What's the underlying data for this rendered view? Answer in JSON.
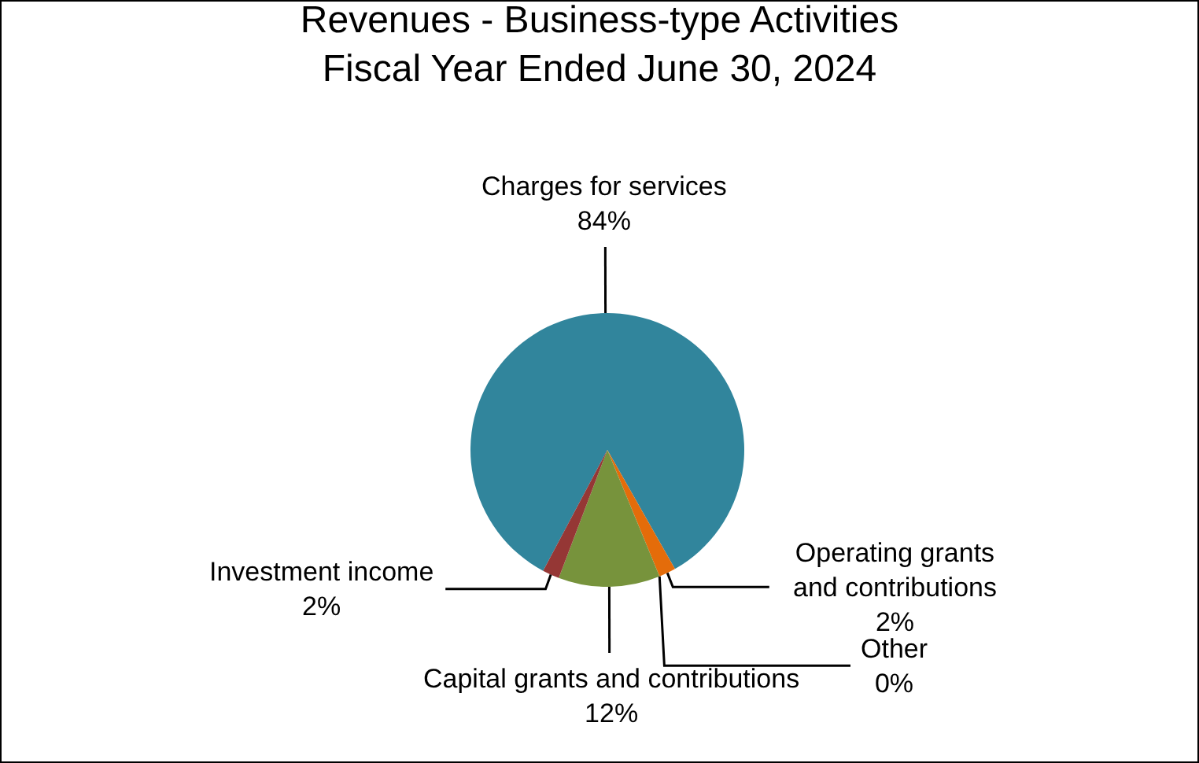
{
  "chart_data": {
    "type": "pie",
    "title": "Revenues - Business-type Activities\nFiscal Year Ended June 30, 2024",
    "categories": [
      "Charges for services",
      "Operating grants\nand contributions",
      "Other",
      "Capital grants and contributions",
      "Investment income"
    ],
    "values": [
      84,
      2,
      0,
      12,
      2
    ],
    "value_labels": [
      "84%",
      "2%",
      "0%",
      "12%",
      "2%"
    ],
    "colors": [
      "#31859c",
      "#e46c0a",
      "#4f81bd",
      "#77933c",
      "#953735"
    ],
    "legend": false
  }
}
